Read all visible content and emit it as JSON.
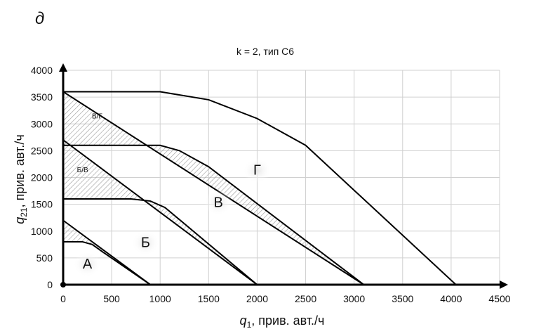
{
  "panel_letter": "д",
  "chart_data": {
    "type": "line",
    "title": "k = 2, тип С6",
    "xlabel": "q1, прив. авт./ч",
    "ylabel": "q21, прив. авт./ч",
    "xlim": [
      0,
      4500
    ],
    "ylim": [
      0,
      4000
    ],
    "xticks": [
      0,
      500,
      1000,
      1500,
      2000,
      2500,
      3000,
      3500,
      4000,
      4500
    ],
    "yticks": [
      0,
      500,
      1000,
      1500,
      2000,
      2500,
      3000,
      3500,
      4000
    ],
    "grid": true,
    "series": [
      {
        "points": [
          [
            0,
            1200
          ],
          [
            900,
            0
          ]
        ]
      },
      {
        "points": [
          [
            0,
            2700
          ],
          [
            2000,
            0
          ]
        ]
      },
      {
        "points": [
          [
            0,
            3600
          ],
          [
            3100,
            0
          ]
        ]
      },
      {
        "points": [
          [
            0,
            800
          ],
          [
            200,
            800
          ],
          [
            300,
            750
          ],
          [
            400,
            620
          ],
          [
            900,
            0
          ]
        ]
      },
      {
        "points": [
          [
            0,
            1600
          ],
          [
            700,
            1600
          ],
          [
            900,
            1560
          ],
          [
            1050,
            1440
          ],
          [
            2000,
            0
          ]
        ]
      },
      {
        "points": [
          [
            0,
            2600
          ],
          [
            1000,
            2600
          ],
          [
            1200,
            2500
          ],
          [
            1500,
            2200
          ],
          [
            3100,
            0
          ]
        ]
      },
      {
        "points": [
          [
            0,
            3600
          ],
          [
            1000,
            3600
          ],
          [
            1500,
            3450
          ],
          [
            2000,
            3100
          ],
          [
            2500,
            2600
          ],
          [
            4050,
            0
          ]
        ]
      }
    ],
    "regions": [
      {
        "label": "А",
        "x": 250,
        "y": 300
      },
      {
        "label": "Б",
        "x": 850,
        "y": 700
      },
      {
        "label": "В",
        "x": 1600,
        "y": 1450
      },
      {
        "label": "Г",
        "x": 2000,
        "y": 2050
      }
    ],
    "transition_zones": [
      {
        "label": "Б/В",
        "x": 200,
        "y": 2100
      },
      {
        "label": "В/Г",
        "x": 350,
        "y": 3100
      }
    ]
  }
}
